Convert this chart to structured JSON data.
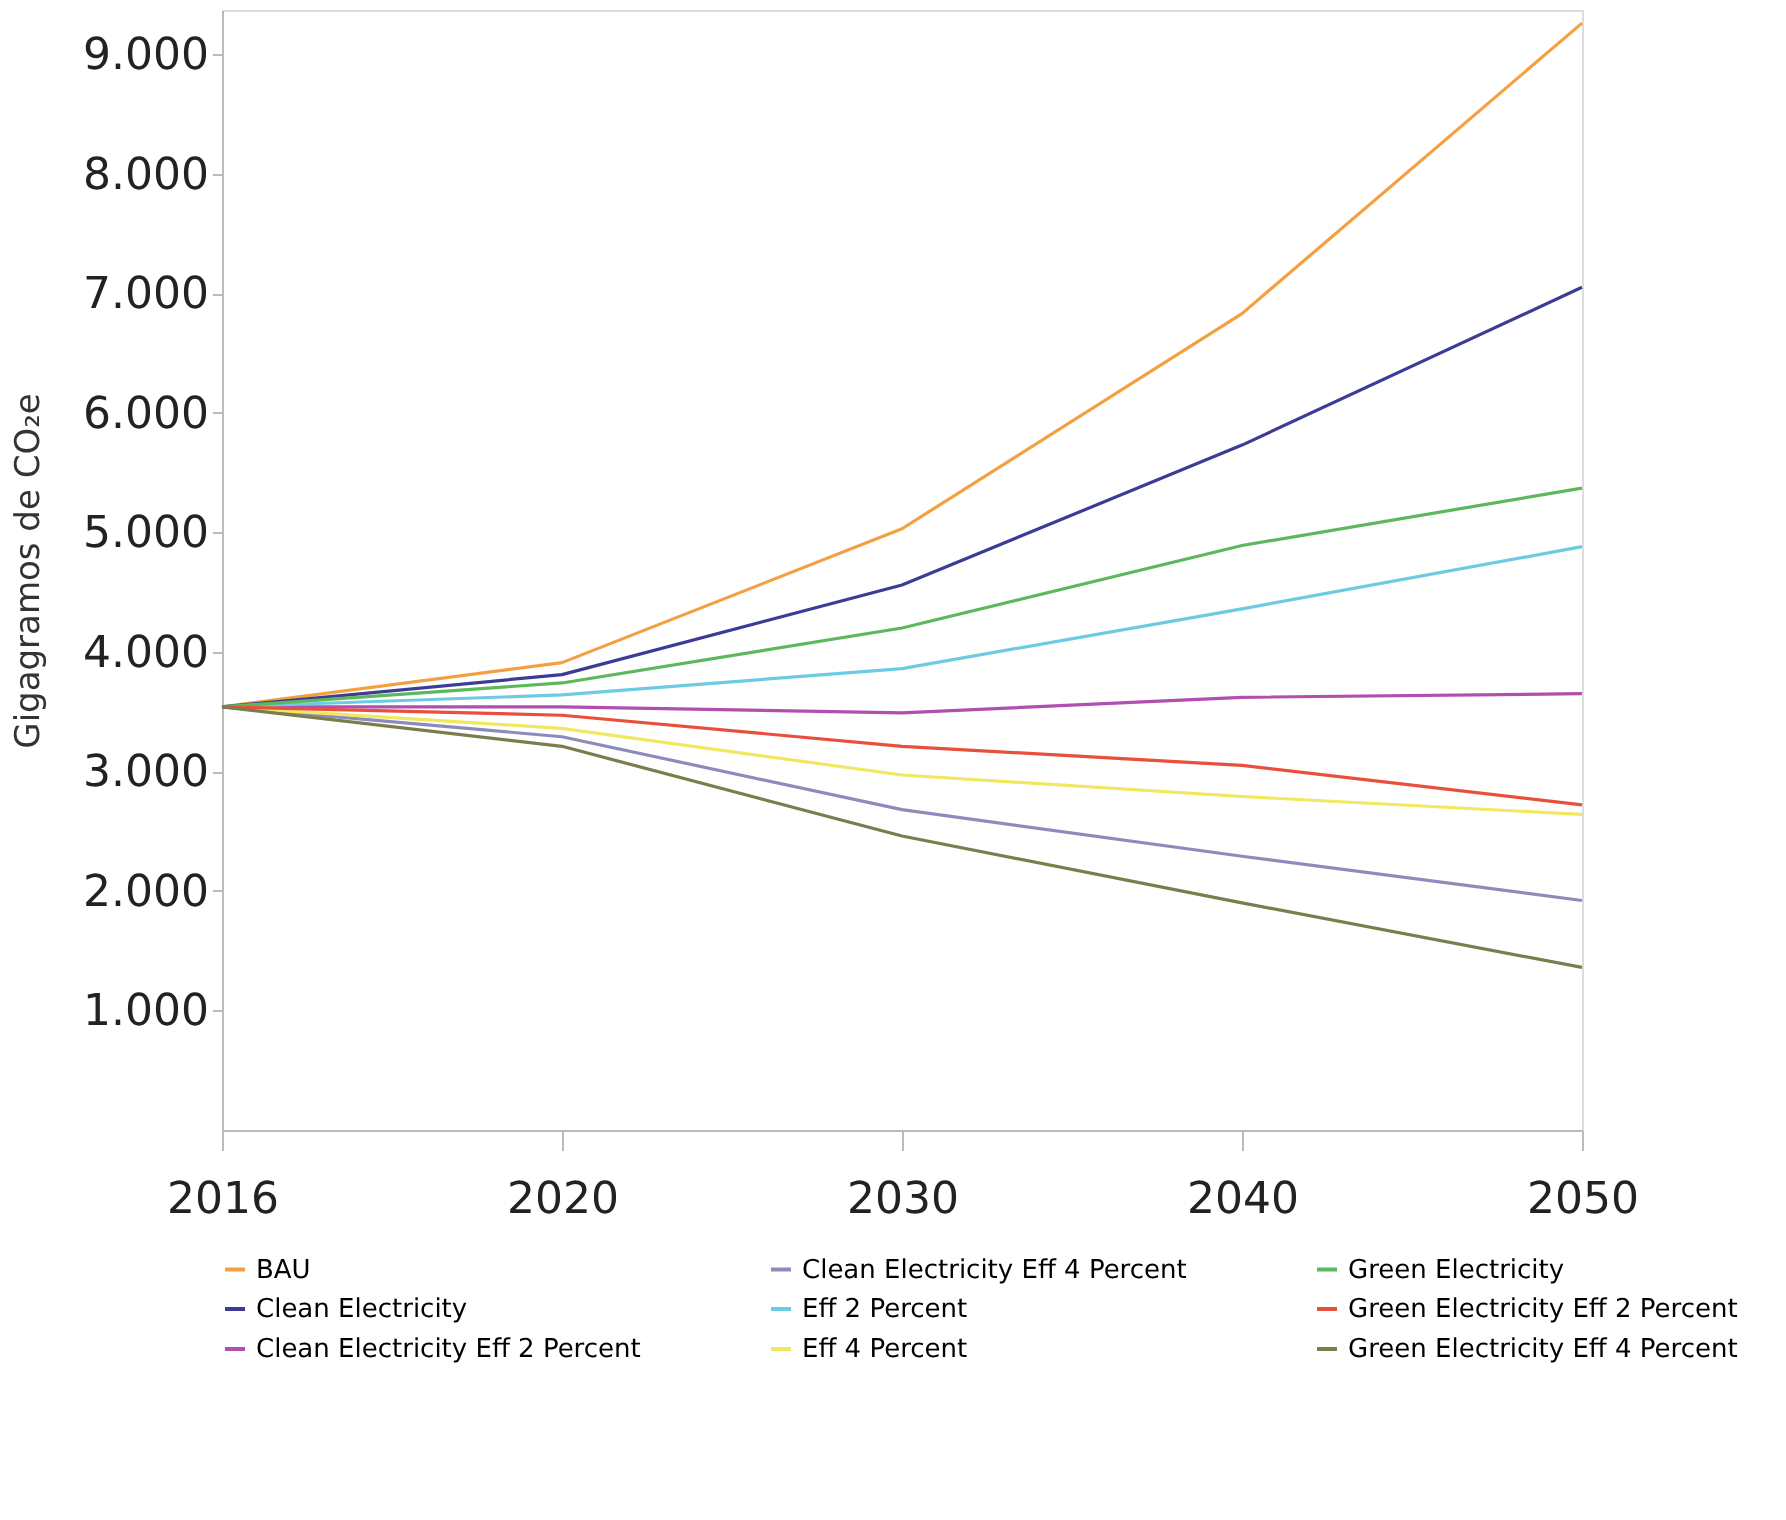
{
  "chart_data": {
    "type": "line",
    "ylabel": "Gigagramos de CO₂e",
    "categories": [
      "2016",
      "2020",
      "2030",
      "2040",
      "2050"
    ],
    "ylim": [
      0,
      9370
    ],
    "yticks": [
      {
        "value": 1000,
        "label": "1.000"
      },
      {
        "value": 2000,
        "label": "2.000"
      },
      {
        "value": 3000,
        "label": "3.000"
      },
      {
        "value": 4000,
        "label": "4.000"
      },
      {
        "value": 5000,
        "label": "5.000"
      },
      {
        "value": 6000,
        "label": "6.000"
      },
      {
        "value": 7000,
        "label": "7.000"
      },
      {
        "value": 8000,
        "label": "8.000"
      },
      {
        "value": 9000,
        "label": "9.000"
      }
    ],
    "grid": false,
    "legend": "bottom",
    "marker": "none",
    "line_style": "solid",
    "series": [
      {
        "name": "BAU",
        "color": "#f4a040",
        "values": [
          3540,
          3910,
          5030,
          6830,
          9260
        ]
      },
      {
        "name": "Clean Electricity",
        "color": "#3c3c96",
        "values": [
          3540,
          3810,
          4560,
          5730,
          7050
        ]
      },
      {
        "name": "Clean Electricity Eff 2 Percent",
        "color": "#b04fb0",
        "values": [
          3540,
          3540,
          3490,
          3620,
          3650
        ]
      },
      {
        "name": "Clean Electricity Eff 4 Percent",
        "color": "#8c8cbc",
        "values": [
          3540,
          3290,
          2680,
          2290,
          1920
        ]
      },
      {
        "name": "Eff 2 Percent",
        "color": "#6ccbe0",
        "values": [
          3540,
          3640,
          3860,
          4360,
          4880
        ]
      },
      {
        "name": "Eff 4 Percent",
        "color": "#f0e860",
        "values": [
          3540,
          3360,
          2970,
          2790,
          2640
        ]
      },
      {
        "name": "Green Electricity",
        "color": "#5cb85c",
        "values": [
          3540,
          3740,
          4200,
          4890,
          5370
        ]
      },
      {
        "name": "Green Electricity Eff 2 Percent",
        "color": "#e8503c",
        "values": [
          3540,
          3470,
          3210,
          3050,
          2720
        ]
      },
      {
        "name": "Green Electricity Eff 4 Percent",
        "color": "#7c7c4c",
        "values": [
          3540,
          3210,
          2460,
          1900,
          1360
        ]
      }
    ]
  }
}
